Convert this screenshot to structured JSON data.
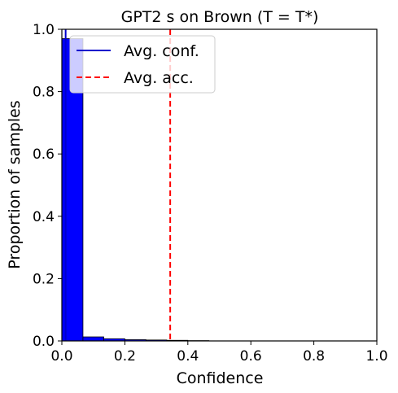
{
  "chart_data": {
    "type": "bar",
    "title": "GPT2 s on Brown (T = T*)",
    "xlabel": "Confidence",
    "ylabel": "Proportion of samples",
    "xlim": [
      0.0,
      1.0
    ],
    "ylim": [
      0.0,
      1.0
    ],
    "xticks": [
      "0.0",
      "0.2",
      "0.4",
      "0.6",
      "0.8",
      "1.0"
    ],
    "yticks": [
      "0.0",
      "0.2",
      "0.4",
      "0.6",
      "0.8",
      "1.0"
    ],
    "grid": false,
    "legend_position": "top-left",
    "bar_color": "#0000ff",
    "bins": [
      {
        "x0": 0.0,
        "x1": 0.067,
        "value": 0.97
      },
      {
        "x0": 0.067,
        "x1": 0.133,
        "value": 0.013
      },
      {
        "x0": 0.133,
        "x1": 0.2,
        "value": 0.007
      },
      {
        "x0": 0.2,
        "x1": 0.267,
        "value": 0.004
      },
      {
        "x0": 0.267,
        "x1": 0.333,
        "value": 0.003
      },
      {
        "x0": 0.333,
        "x1": 0.4,
        "value": 0.002
      },
      {
        "x0": 0.4,
        "x1": 0.467,
        "value": 0.001
      }
    ],
    "series": [
      {
        "name": "Avg. conf.",
        "type": "vline",
        "x": 0.012,
        "color": "#0000cc",
        "style": "solid"
      },
      {
        "name": "Avg. acc.",
        "type": "vline",
        "x": 0.344,
        "color": "#ff0000",
        "style": "dashed"
      }
    ]
  }
}
